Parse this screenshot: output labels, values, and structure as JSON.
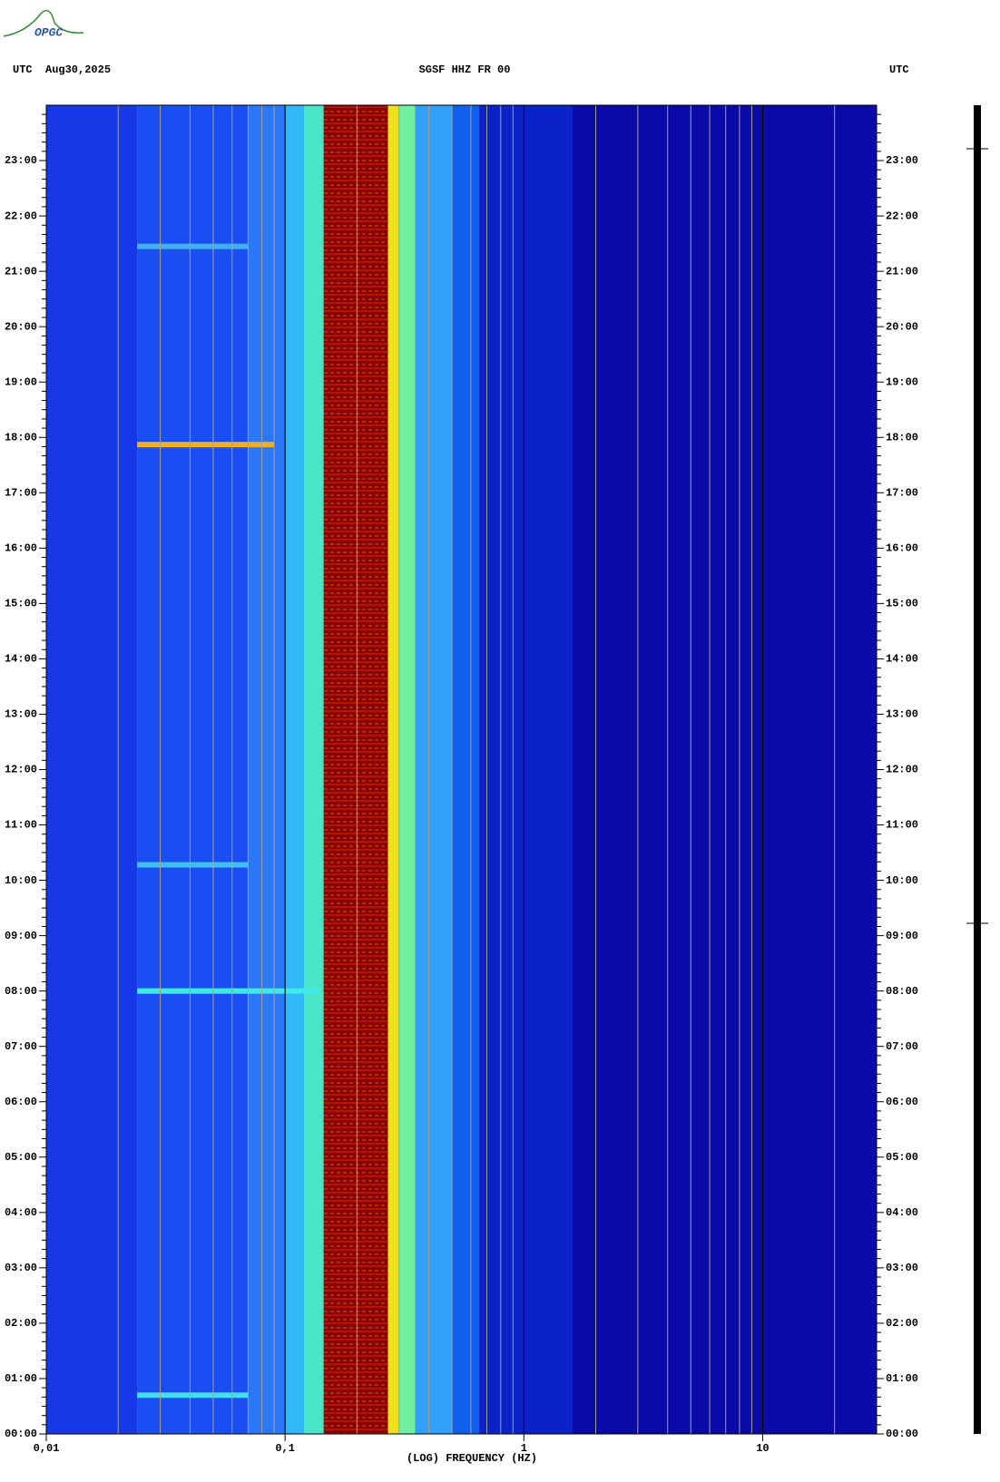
{
  "logo": "OPGC",
  "chart_data": {
    "type": "spectrogram",
    "title": "SGSF HHZ FR 00",
    "header_left": "UTC  Aug30,2025",
    "header_right": "UTC",
    "xlabel": "(LOG) FREQUENCY (HZ)",
    "xscale": "log",
    "xlim": [
      0.01,
      30
    ],
    "xticks": [
      {
        "value": 0.01,
        "label": "0,01"
      },
      {
        "value": 0.1,
        "label": "0,1"
      },
      1,
      10
    ],
    "xminor": [
      0.02,
      0.03,
      0.04,
      0.05,
      0.06,
      0.07,
      0.08,
      0.09,
      0.2,
      0.3,
      0.4,
      0.5,
      0.6,
      0.7,
      0.8,
      0.9,
      2,
      3,
      4,
      5,
      6,
      7,
      8,
      9,
      20
    ],
    "ylim": [
      0,
      24
    ],
    "yticks": [
      {
        "value": 0,
        "label": "00:00"
      },
      {
        "value": 1,
        "label": "01:00"
      },
      {
        "value": 2,
        "label": "02:00"
      },
      {
        "value": 3,
        "label": "03:00"
      },
      {
        "value": 4,
        "label": "04:00"
      },
      {
        "value": 5,
        "label": "05:00"
      },
      {
        "value": 6,
        "label": "06:00"
      },
      {
        "value": 7,
        "label": "07:00"
      },
      {
        "value": 8,
        "label": "08:00"
      },
      {
        "value": 9,
        "label": "09:00"
      },
      {
        "value": 10,
        "label": "10:00"
      },
      {
        "value": 11,
        "label": "11:00"
      },
      {
        "value": 12,
        "label": "12:00"
      },
      {
        "value": 13,
        "label": "13:00"
      },
      {
        "value": 14,
        "label": "14:00"
      },
      {
        "value": 15,
        "label": "15:00"
      },
      {
        "value": 16,
        "label": "16:00"
      },
      {
        "value": 17,
        "label": "17:00"
      },
      {
        "value": 18,
        "label": "18:00"
      },
      {
        "value": 19,
        "label": "19:00"
      },
      {
        "value": 20,
        "label": "20:00"
      },
      {
        "value": 21,
        "label": "21:00"
      },
      {
        "value": 22,
        "label": "22:00"
      },
      {
        "value": 23,
        "label": "23:00"
      }
    ],
    "bins": [
      0.01,
      0.024,
      0.07,
      0.1,
      0.12,
      0.145,
      0.27,
      0.3,
      0.35,
      0.5,
      0.65,
      1.6,
      30
    ],
    "colors": [
      "#1638e6",
      "#1a4ef2",
      "#2a78f8",
      "#30b8f8",
      "#48e8c8",
      "#8b0000",
      "#f0e020",
      "#70f0a0",
      "#30a0f8",
      "#1060f0",
      "#0a22c8",
      "#0a0aa8"
    ],
    "events": [
      {
        "time": 0.7,
        "fmin": 0.024,
        "fmax": 0.07,
        "color": "#40e0f0"
      },
      {
        "time": 8.0,
        "fmin": 0.024,
        "fmax": 0.14,
        "color": "#40e8e8"
      },
      {
        "time": 10.28,
        "fmin": 0.024,
        "fmax": 0.07,
        "color": "#40c0f0"
      },
      {
        "time": 17.87,
        "fmin": 0.024,
        "fmax": 0.09,
        "color": "#f0b020"
      },
      {
        "time": 21.45,
        "fmin": 0.024,
        "fmax": 0.07,
        "color": "#40b0f0"
      }
    ]
  }
}
